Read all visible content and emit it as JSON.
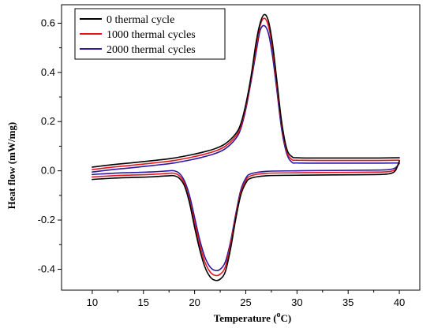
{
  "chart_data": {
    "type": "line",
    "xlabel": "Temperature (",
    "xlabel_sup": "o",
    "xlabel_unit": "C)",
    "ylabel": "Heat flow (mW/mg)",
    "xlim": [
      7,
      42
    ],
    "ylim": [
      -0.485,
      0.675
    ],
    "xticks": [
      10,
      15,
      20,
      25,
      30,
      35,
      40
    ],
    "yticks": [
      -0.4,
      -0.2,
      0.0,
      0.2,
      0.4,
      0.6
    ],
    "ytick_labels": [
      "-0.4",
      "-0.2",
      "0.0",
      "0.2",
      "0.4",
      "0.6"
    ],
    "legend_position": "top-left",
    "series": [
      {
        "name": "0 thermal cycle",
        "color": "#000000",
        "heating": {
          "x": [
            10,
            12,
            14,
            16,
            18,
            20,
            21,
            22,
            23,
            24,
            24.5,
            25,
            25.5,
            26,
            26.4,
            26.8,
            27.2,
            27.6,
            28,
            28.5,
            29,
            29.5,
            30,
            32,
            35,
            38,
            40
          ],
          "y": [
            0.015,
            0.025,
            0.033,
            0.042,
            0.052,
            0.068,
            0.078,
            0.09,
            0.11,
            0.15,
            0.19,
            0.27,
            0.38,
            0.52,
            0.6,
            0.635,
            0.61,
            0.52,
            0.38,
            0.2,
            0.09,
            0.058,
            0.053,
            0.052,
            0.052,
            0.052,
            0.053
          ]
        },
        "cooling": {
          "x": [
            40,
            39.6,
            39,
            38,
            35,
            30,
            27,
            25.5,
            25,
            24.5,
            24,
            23.5,
            23,
            22.5,
            22,
            21.5,
            21,
            20.5,
            20,
            19.5,
            19,
            18.5,
            18,
            17.5,
            16,
            14,
            12,
            10
          ],
          "y": [
            0.04,
            0.0,
            -0.012,
            -0.015,
            -0.016,
            -0.018,
            -0.02,
            -0.03,
            -0.05,
            -0.1,
            -0.2,
            -0.32,
            -0.41,
            -0.44,
            -0.445,
            -0.43,
            -0.39,
            -0.32,
            -0.23,
            -0.13,
            -0.06,
            -0.03,
            -0.02,
            -0.02,
            -0.024,
            -0.027,
            -0.03,
            -0.035
          ]
        }
      },
      {
        "name": "1000 thermal cycles",
        "color": "#e8141e",
        "heating": {
          "x": [
            10,
            12,
            14,
            16,
            18,
            20,
            21,
            22,
            23,
            24,
            24.5,
            25,
            25.5,
            26,
            26.4,
            26.8,
            27.2,
            27.6,
            28,
            28.5,
            29,
            29.5,
            30,
            32,
            35,
            38,
            40
          ],
          "y": [
            0.005,
            0.015,
            0.023,
            0.032,
            0.042,
            0.058,
            0.068,
            0.08,
            0.1,
            0.14,
            0.18,
            0.26,
            0.37,
            0.5,
            0.59,
            0.62,
            0.59,
            0.5,
            0.36,
            0.19,
            0.08,
            0.046,
            0.043,
            0.042,
            0.042,
            0.042,
            0.043
          ]
        },
        "cooling": {
          "x": [
            40,
            39.6,
            39,
            38,
            35,
            30,
            27,
            25.5,
            25,
            24.5,
            24,
            23.5,
            23,
            22.5,
            22,
            21.5,
            21,
            20.5,
            20,
            19.5,
            19,
            18.5,
            18,
            17.5,
            16,
            14,
            12,
            10
          ],
          "y": [
            0.035,
            0.005,
            -0.003,
            -0.005,
            -0.006,
            -0.008,
            -0.01,
            -0.02,
            -0.04,
            -0.09,
            -0.19,
            -0.3,
            -0.39,
            -0.42,
            -0.425,
            -0.41,
            -0.37,
            -0.3,
            -0.21,
            -0.12,
            -0.05,
            -0.02,
            -0.01,
            -0.01,
            -0.014,
            -0.017,
            -0.02,
            -0.025
          ]
        }
      },
      {
        "name": "2000 thermal cycles",
        "color": "#2e1aa0",
        "heating": {
          "x": [
            10,
            12,
            14,
            16,
            18,
            20,
            21,
            22,
            23,
            24,
            24.5,
            25,
            25.5,
            26,
            26.4,
            26.8,
            27.2,
            27.6,
            28,
            28.5,
            29,
            29.5,
            30,
            32,
            35,
            38,
            40
          ],
          "y": [
            -0.005,
            0.005,
            0.013,
            0.022,
            0.032,
            0.048,
            0.058,
            0.07,
            0.09,
            0.13,
            0.17,
            0.25,
            0.36,
            0.48,
            0.57,
            0.59,
            0.56,
            0.47,
            0.34,
            0.17,
            0.07,
            0.035,
            0.032,
            0.031,
            0.031,
            0.031,
            0.032
          ]
        },
        "cooling": {
          "x": [
            40,
            39.6,
            39,
            38,
            35,
            30,
            27,
            25.5,
            25,
            24.5,
            24,
            23.5,
            23,
            22.5,
            22,
            21.5,
            21,
            20.5,
            20,
            19.5,
            19,
            18.5,
            18,
            17.5,
            16,
            14,
            12,
            10
          ],
          "y": [
            0.03,
            0.012,
            0.005,
            0.003,
            0.002,
            0.0,
            -0.002,
            -0.012,
            -0.03,
            -0.08,
            -0.18,
            -0.29,
            -0.37,
            -0.4,
            -0.405,
            -0.39,
            -0.35,
            -0.28,
            -0.19,
            -0.1,
            -0.04,
            -0.01,
            0.0,
            0.0,
            -0.004,
            -0.007,
            -0.01,
            -0.015
          ]
        }
      }
    ]
  }
}
